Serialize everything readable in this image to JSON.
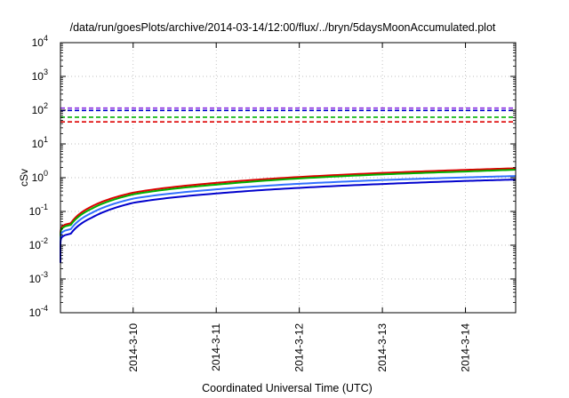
{
  "chart_data": {
    "type": "line",
    "title": "/data/run/goesPlots/archive/2014-03-14/12:00/flux/../bryn/5daysMoonAccumulated.plot",
    "xlabel": "Coordinated Universal Time (UTC)",
    "ylabel": "cSv",
    "y_scale": "log",
    "ylim": [
      0.0001,
      10000
    ],
    "x_range": [
      "2014-03-09T03:00",
      "2014-03-14T14:30"
    ],
    "x_ticks": [
      {
        "label": "2014-3-10",
        "date": "2014-03-10T00:00"
      },
      {
        "label": "2014-3-11",
        "date": "2014-03-11T00:00"
      },
      {
        "label": "2014-3-12",
        "date": "2014-03-12T00:00"
      },
      {
        "label": "2014-3-13",
        "date": "2014-03-13T00:00"
      },
      {
        "label": "2014-3-14",
        "date": "2014-03-14T00:00"
      }
    ],
    "y_ticks": [
      {
        "base": "10",
        "exp": "-4",
        "value": 0.0001
      },
      {
        "base": "10",
        "exp": "-3",
        "value": 0.001
      },
      {
        "base": "10",
        "exp": "-2",
        "value": 0.01
      },
      {
        "base": "10",
        "exp": "-1",
        "value": 0.1
      },
      {
        "base": "10",
        "exp": "0",
        "value": 1
      },
      {
        "base": "10",
        "exp": "1",
        "value": 10
      },
      {
        "base": "10",
        "exp": "2",
        "value": 100
      },
      {
        "base": "10",
        "exp": "3",
        "value": 1000
      },
      {
        "base": "10",
        "exp": "4",
        "value": 10000
      }
    ],
    "grid": true,
    "legend": "none",
    "threshold_lines": [
      {
        "color": "#8a2be2",
        "value": 115
      },
      {
        "color": "#0000cc",
        "value": 98
      },
      {
        "color": "#00b000",
        "value": 62
      },
      {
        "color": "#dd0000",
        "value": 45
      }
    ],
    "series": [
      {
        "color": "#dd0000",
        "x": [
          "2014-03-09T03:00",
          "2014-03-09T06:00",
          "2014-03-09T12:00",
          "2014-03-10T00:00",
          "2014-03-11T00:00",
          "2014-03-12T00:00",
          "2014-03-13T00:00",
          "2014-03-14T00:00",
          "2014-03-14T14:30"
        ],
        "y": [
          0.006,
          0.045,
          0.14,
          0.36,
          0.7,
          1.05,
          1.38,
          1.7,
          1.9
        ]
      },
      {
        "color": "#00b000",
        "x": [
          "2014-03-09T03:00",
          "2014-03-09T06:00",
          "2014-03-09T12:00",
          "2014-03-10T00:00",
          "2014-03-11T00:00",
          "2014-03-12T00:00",
          "2014-03-13T00:00",
          "2014-03-14T00:00",
          "2014-03-14T14:30"
        ],
        "y": [
          0.005,
          0.04,
          0.12,
          0.32,
          0.62,
          0.95,
          1.25,
          1.52,
          1.72
        ]
      },
      {
        "color": "#3070ff",
        "x": [
          "2014-03-09T03:00",
          "2014-03-09T06:00",
          "2014-03-09T12:00",
          "2014-03-10T00:00",
          "2014-03-11T00:00",
          "2014-03-12T00:00",
          "2014-03-13T00:00",
          "2014-03-14T00:00",
          "2014-03-14T14:30"
        ],
        "y": [
          0.004,
          0.03,
          0.09,
          0.24,
          0.45,
          0.66,
          0.85,
          1.02,
          1.12
        ]
      },
      {
        "color": "#0000cc",
        "x": [
          "2014-03-09T03:00",
          "2014-03-09T06:00",
          "2014-03-09T12:00",
          "2014-03-10T00:00",
          "2014-03-11T00:00",
          "2014-03-12T00:00",
          "2014-03-13T00:00",
          "2014-03-14T00:00",
          "2014-03-14T14:30"
        ],
        "y": [
          0.003,
          0.022,
          0.065,
          0.18,
          0.34,
          0.5,
          0.65,
          0.8,
          0.88
        ]
      }
    ]
  }
}
